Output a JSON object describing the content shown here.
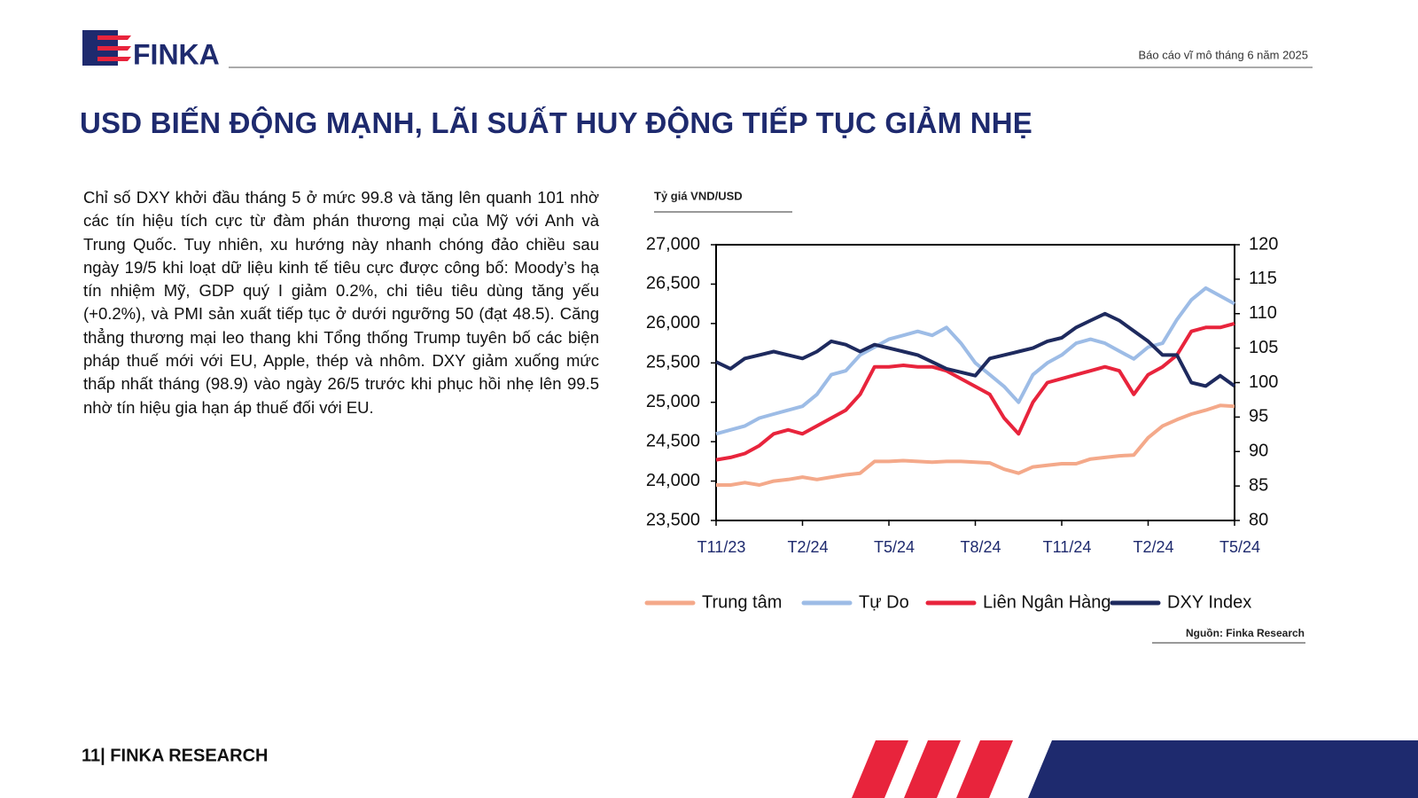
{
  "header": {
    "logo": "FINKA",
    "report": "Báo cáo vĩ mô tháng 6 năm 2025"
  },
  "title": "USD BIẾN ĐỘNG MẠNH, LÃI SUẤT HUY ĐỘNG TIẾP TỤC GIẢM NHẸ",
  "body": {
    "paragraph": "Chỉ số DXY khởi đầu tháng 5 ở mức 99.8 và tăng lên quanh 101 nhờ các tín hiệu tích cực từ đàm phán thương mại của Mỹ với Anh và Trung Quốc. Tuy nhiên, xu hướng này nhanh chóng đảo chiều sau ngày 19/5 khi loạt dữ liệu kinh tế tiêu cực được công bố: Moody’s hạ tín nhiệm Mỹ, GDP quý I giảm 0.2%, chi tiêu tiêu dùng tăng yếu (+0.2%), và PMI sản xuất tiếp tục ở dưới ngưỡng 50 (đạt 48.5). Căng thẳng thương mại leo thang khi Tổng thống Trump tuyên bố các biện pháp thuế mới với EU, Apple, thép và nhôm. DXY giảm xuống mức thấp nhất tháng (98.9) vào ngày 26/5 trước khi phục hồi nhẹ lên 99.5 nhờ tín hiệu gia hạn áp thuế đối với EU."
  },
  "chart_data": {
    "type": "line",
    "title": "Tỷ giá VND/USD",
    "source": "Nguồn: Finka Research",
    "categories": [
      "T11/23",
      null,
      null,
      null,
      null,
      null,
      "T2/24",
      null,
      null,
      null,
      null,
      null,
      "T5/24",
      null,
      null,
      null,
      null,
      null,
      "T8/24",
      null,
      null,
      null,
      null,
      null,
      "T11/24",
      null,
      null,
      null,
      null,
      null,
      "T2/24",
      null,
      null,
      null,
      null,
      null,
      "T5/24"
    ],
    "ylim": [
      23500,
      27000
    ],
    "yticks": [
      {
        "value": 23500,
        "label": "23,500"
      },
      {
        "value": 24000,
        "label": "24,000"
      },
      {
        "value": 24500,
        "label": "24,500"
      },
      {
        "value": 25000,
        "label": "25,000"
      },
      {
        "value": 25500,
        "label": "25,500"
      },
      {
        "value": 26000,
        "label": "26,000"
      },
      {
        "value": 26500,
        "label": "26,500"
      },
      {
        "value": 27000,
        "label": "27,000"
      }
    ],
    "y2lim": [
      80,
      120
    ],
    "y2ticks": [
      80,
      85,
      90,
      95,
      100,
      105,
      110,
      115,
      120
    ],
    "legend": "bottom",
    "series": [
      {
        "name": "Trung tâm",
        "color": "#f4a98a",
        "values": [
          23950,
          23950,
          23980,
          23950,
          24000,
          24020,
          24050,
          24020,
          24050,
          24080,
          24100,
          24250,
          24250,
          24260,
          24250,
          24240,
          24250,
          24250,
          24240,
          24230,
          24150,
          24100,
          24180,
          24200,
          24220,
          24220,
          24280,
          24300,
          24320,
          24330,
          24550,
          24700,
          24780,
          24850,
          24900,
          24960,
          24950
        ]
      },
      {
        "name": "Tự Do",
        "color": "#9dbce6",
        "values": [
          24600,
          24650,
          24700,
          24800,
          24850,
          24900,
          24950,
          25100,
          25350,
          25400,
          25600,
          25700,
          25800,
          25850,
          25900,
          25850,
          25950,
          25750,
          25500,
          25350,
          25200,
          25000,
          25350,
          25500,
          25600,
          25750,
          25800,
          25750,
          25650,
          25550,
          25700,
          25750,
          26050,
          26300,
          26450,
          26350,
          26250
        ]
      },
      {
        "name": "Liên Ngân Hàng",
        "color": "#e8243c",
        "values": [
          24270,
          24300,
          24350,
          24450,
          24600,
          24650,
          24600,
          24700,
          24800,
          24900,
          25100,
          25450,
          25450,
          25470,
          25450,
          25450,
          25400,
          25300,
          25200,
          25100,
          24800,
          24600,
          25000,
          25250,
          25300,
          25350,
          25400,
          25450,
          25400,
          25100,
          25350,
          25450,
          25600,
          25900,
          25950,
          25950,
          26000
        ]
      },
      {
        "name": "DXY Index",
        "color": "#1e2a5e",
        "axis": "y2",
        "values": [
          103,
          102,
          103.5,
          104,
          104.5,
          104,
          103.5,
          104.5,
          106,
          105.5,
          104.5,
          105.5,
          105,
          104.5,
          104,
          103,
          102,
          101.5,
          101,
          103.5,
          104,
          104.5,
          105,
          106,
          106.5,
          108,
          109,
          110,
          109,
          107.5,
          106,
          104,
          104,
          100,
          99.5,
          101,
          99.5
        ]
      }
    ]
  },
  "footer": {
    "page": "11| FINKA RESEARCH"
  }
}
